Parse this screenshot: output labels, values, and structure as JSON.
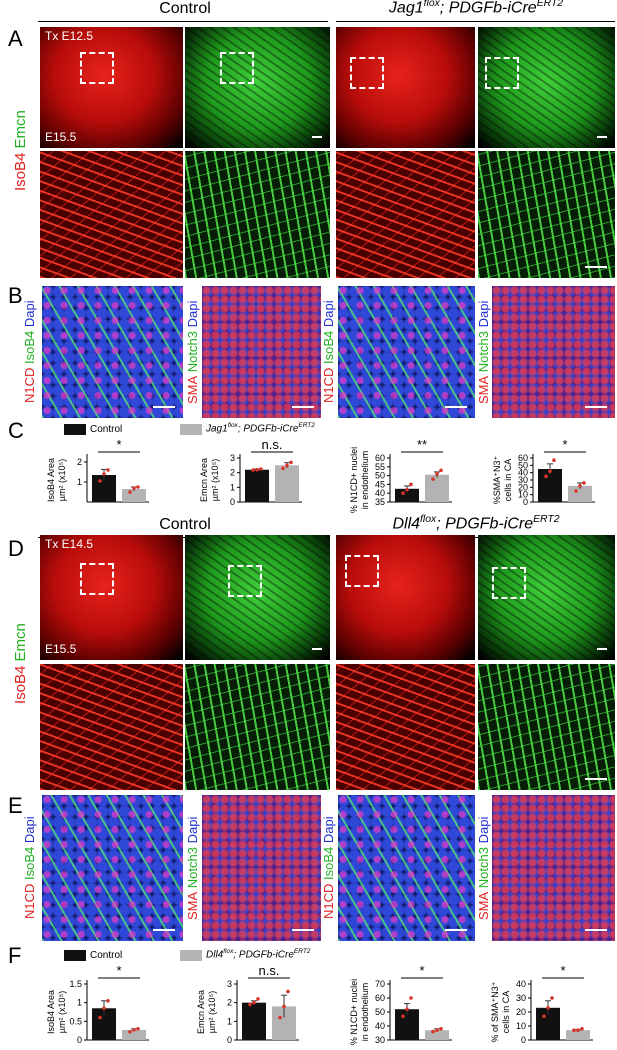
{
  "panel_labels": [
    "A",
    "B",
    "C",
    "D",
    "E",
    "F"
  ],
  "stains_b": {
    "left": [
      "N1CD",
      "IsoB4",
      "Dapi"
    ],
    "right": [
      "SMA",
      "Notch3",
      "Dapi"
    ]
  },
  "top": {
    "control": "Control",
    "mutant_parts": [
      "Jag1",
      "flox",
      "; PDGFb-iCre",
      "ERT2"
    ],
    "timepoints": [
      "Tx E12.5",
      "E15.5"
    ],
    "stains": [
      "IsoB4",
      "Emcn"
    ]
  },
  "bottom": {
    "control": "Control",
    "mutant_parts": [
      "Dll4",
      "flox",
      "; PDGFb-iCre",
      "ERT2"
    ],
    "timepoints": [
      "Tx E14.5",
      "E15.5"
    ],
    "stains": [
      "IsoB4",
      "Emcn"
    ]
  },
  "panel_c": {
    "legend": {
      "control": "Control",
      "mutant_parts": [
        "Jag1",
        "flox",
        "; PDGFb-iCre",
        "ERT2"
      ],
      "colors": [
        "#111111",
        "#b3b3b3"
      ],
      "point_color": "#d8342a"
    },
    "charts": [
      {
        "type": "bar",
        "ylabel": [
          "IsoB4 Area",
          "µm² (x10⁵)"
        ],
        "ylim": [
          0,
          2.2
        ],
        "yticks": [
          1,
          2
        ],
        "values": [
          1.35,
          0.65
        ],
        "errors": [
          0.28,
          0.1
        ],
        "points": [
          [
            1.05,
            1.4,
            1.6
          ],
          [
            0.5,
            0.7,
            0.75
          ]
        ],
        "significance": "*"
      },
      {
        "type": "bar",
        "ylabel": [
          "Emcn Area",
          "µm² (x10⁵)"
        ],
        "ylim": [
          0,
          3
        ],
        "yticks": [
          0,
          1,
          2,
          3
        ],
        "values": [
          2.2,
          2.5
        ],
        "errors": [
          0.05,
          0.18
        ],
        "points": [
          [
            2.18,
            2.2,
            2.25
          ],
          [
            2.3,
            2.5,
            2.7
          ]
        ],
        "significance": "n.s."
      },
      {
        "type": "bar",
        "ylabel": [
          "% N1CD+ nuclei",
          "in endothelium"
        ],
        "ylim": [
          35,
          60
        ],
        "yticks": [
          35,
          40,
          45,
          50,
          55,
          60
        ],
        "values": [
          42.5,
          50.5
        ],
        "errors": [
          1.6,
          1.6
        ],
        "points": [
          [
            40,
            42,
            45
          ],
          [
            48,
            51,
            53
          ]
        ],
        "significance": "**"
      },
      {
        "type": "bar",
        "ylabel": [
          "%SMA⁺N3⁺",
          "cells in CA"
        ],
        "ylim": [
          0,
          60
        ],
        "yticks": [
          0,
          10,
          20,
          30,
          40,
          50,
          60
        ],
        "values": [
          45,
          22
        ],
        "errors": [
          7,
          4
        ],
        "points": [
          [
            35,
            42,
            57
          ],
          [
            15,
            22,
            26
          ]
        ],
        "significance": "*"
      }
    ]
  },
  "panel_f": {
    "legend": {
      "control": "Control",
      "mutant_parts": [
        "Dll4",
        "flox",
        "; PDGFb-iCre",
        "ERT2"
      ],
      "colors": [
        "#111111",
        "#b3b3b3"
      ],
      "point_color": "#d8342a"
    },
    "charts": [
      {
        "type": "bar",
        "ylabel": [
          "IsoB4 Area",
          "µm² (x10⁵)"
        ],
        "ylim": [
          0,
          1.5
        ],
        "yticks": [
          0,
          0.5,
          1,
          1.5
        ],
        "values": [
          0.85,
          0.27
        ],
        "errors": [
          0.2,
          0.03
        ],
        "points": [
          [
            0.6,
            0.85,
            1.05
          ],
          [
            0.22,
            0.27,
            0.3
          ]
        ],
        "significance": "*"
      },
      {
        "type": "bar",
        "ylabel": [
          "Emcn Area",
          "µm² (x10⁵)"
        ],
        "ylim": [
          0,
          3
        ],
        "yticks": [
          0,
          1,
          2,
          3
        ],
        "values": [
          2.0,
          1.8
        ],
        "errors": [
          0.1,
          0.6
        ],
        "points": [
          [
            1.9,
            2.0,
            2.2
          ],
          [
            1.2,
            1.8,
            2.6
          ]
        ],
        "significance": "n.s."
      },
      {
        "type": "bar",
        "ylabel": [
          "% N1CD+ nuclei",
          "in endothelium"
        ],
        "ylim": [
          30,
          70
        ],
        "yticks": [
          30,
          40,
          50,
          60,
          70
        ],
        "values": [
          52,
          37
        ],
        "errors": [
          4,
          1
        ],
        "points": [
          [
            47,
            52,
            60
          ],
          [
            36,
            37,
            38
          ]
        ],
        "significance": "*"
      },
      {
        "type": "bar",
        "ylabel": [
          "% of SMA⁺N3⁺",
          "cells in CA"
        ],
        "ylim": [
          0,
          40
        ],
        "yticks": [
          0,
          10,
          20,
          30,
          40
        ],
        "values": [
          23,
          7
        ],
        "errors": [
          5,
          0.3
        ],
        "points": [
          [
            17,
            23,
            30
          ],
          [
            7,
            7,
            8
          ]
        ],
        "significance": "*"
      }
    ]
  }
}
